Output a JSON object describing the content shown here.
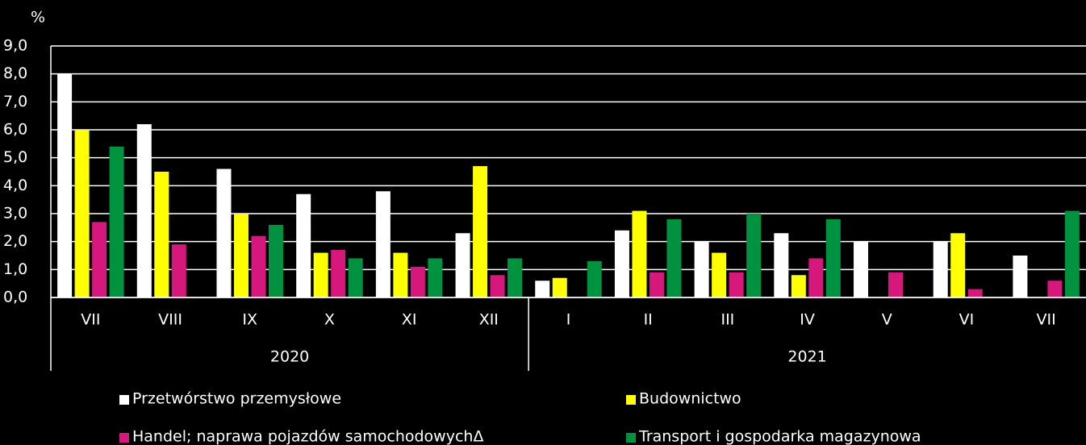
{
  "chart_data": {
    "type": "bar",
    "y_label": "%",
    "categories": [
      "VII",
      "VIII",
      "IX",
      "X",
      "XI",
      "XII",
      "I",
      "II",
      "III",
      "IV",
      "V",
      "VI",
      "VII"
    ],
    "groups": [
      {
        "label": "2020",
        "count": 6
      },
      {
        "label": "2021",
        "count": 7
      }
    ],
    "series": [
      {
        "name": "Przetwórstwo przemysłowe",
        "color": "#ffffff",
        "values": [
          8.0,
          6.2,
          4.6,
          3.7,
          3.8,
          2.3,
          0.6,
          2.4,
          2.0,
          2.3,
          2.0,
          2.0,
          1.5
        ]
      },
      {
        "name": "Budownictwo",
        "color": "#ffff00",
        "values": [
          6.0,
          4.5,
          3.0,
          1.6,
          1.6,
          4.7,
          0.7,
          3.1,
          1.6,
          0.8,
          null,
          2.3,
          null
        ]
      },
      {
        "name": "Handel; naprawa pojazdów samochodowychΔ",
        "color": "#d6187d",
        "values": [
          2.7,
          1.9,
          2.2,
          1.7,
          1.1,
          0.8,
          null,
          0.9,
          0.9,
          1.4,
          0.9,
          0.3,
          0.6
        ]
      },
      {
        "name": "Transport i gospodarka magazynowa",
        "color": "#00923f",
        "values": [
          5.4,
          null,
          2.6,
          1.4,
          1.4,
          1.4,
          1.3,
          2.8,
          3.0,
          2.8,
          null,
          null,
          3.1
        ]
      }
    ],
    "ylim": [
      0,
      9
    ],
    "yticks": [
      {
        "value": 0,
        "label": "0,0"
      },
      {
        "value": 1,
        "label": "1,0"
      },
      {
        "value": 2,
        "label": "2,0"
      },
      {
        "value": 3,
        "label": "3,0"
      },
      {
        "value": 4,
        "label": "4,0"
      },
      {
        "value": 5,
        "label": "5,0"
      },
      {
        "value": 6,
        "label": "6,0"
      },
      {
        "value": 7,
        "label": "7,0"
      },
      {
        "value": 8,
        "label": "8,0"
      },
      {
        "value": 9,
        "label": "9,0"
      }
    ],
    "grid": true
  }
}
